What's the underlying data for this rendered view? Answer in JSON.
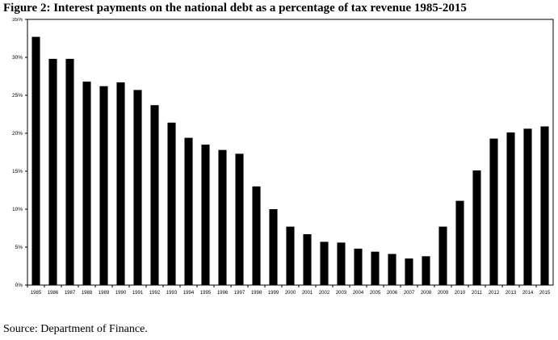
{
  "title": "Figure 2: Interest payments on the national debt as a percentage of tax revenue 1985-2015",
  "source": "Source: Department of Finance.",
  "chart_data": {
    "type": "bar",
    "title": "Figure 2: Interest payments on the national debt as a percentage of tax revenue 1985-2015",
    "xlabel": "",
    "ylabel": "",
    "categories": [
      "1985",
      "1986",
      "1987",
      "1988",
      "1989",
      "1990",
      "1991",
      "1992",
      "1993",
      "1994",
      "1995",
      "1996",
      "1997",
      "1998",
      "1999",
      "2000",
      "2001",
      "2002",
      "2003",
      "2004",
      "2005",
      "2006",
      "2007",
      "2008",
      "2009",
      "2010",
      "2011",
      "2012",
      "2013",
      "2014",
      "2015"
    ],
    "values": [
      32.7,
      29.8,
      29.8,
      26.8,
      26.2,
      26.7,
      25.7,
      23.7,
      21.4,
      19.4,
      18.5,
      17.8,
      17.3,
      13.0,
      10.0,
      7.7,
      6.7,
      5.7,
      5.6,
      4.8,
      4.4,
      4.1,
      3.5,
      3.8,
      7.7,
      11.1,
      15.1,
      19.3,
      20.1,
      20.6,
      20.9
    ],
    "ylim": [
      0,
      35
    ],
    "yticks": [
      "0%",
      "5%",
      "10%",
      "15%",
      "20%",
      "25%",
      "30%",
      "35%"
    ],
    "grid": false,
    "bar_color": "#000000"
  }
}
